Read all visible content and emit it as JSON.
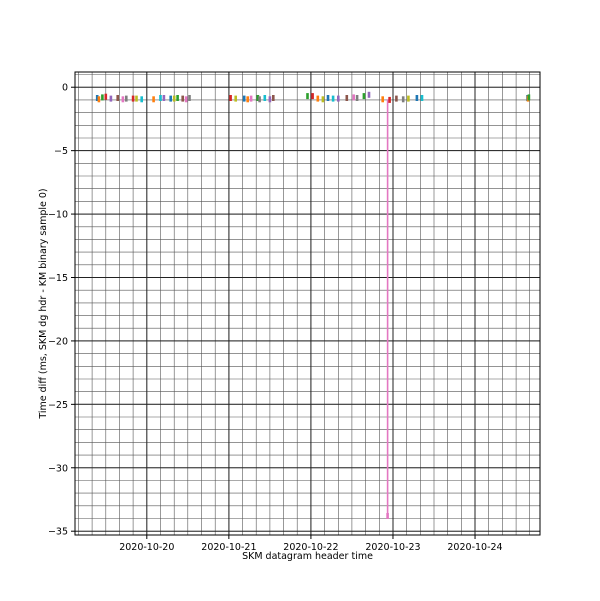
{
  "chart_data": {
    "type": "scatter",
    "title": "",
    "xlabel": "SKM datagram header time",
    "ylabel": "Time diff (ms, SKM dg hdr - KM binary sample 0)",
    "x_axis_kind": "date",
    "xlim": [
      "2020-10-19 03:00",
      "2020-10-24 19:00"
    ],
    "ylim": [
      -35.3,
      1.2
    ],
    "x_ticks": [
      "2020-10-20",
      "2020-10-21",
      "2020-10-22",
      "2020-10-23",
      "2020-10-24"
    ],
    "y_ticks": [
      0,
      -5,
      -10,
      -15,
      -20,
      -25,
      -30,
      -35
    ],
    "grid": true,
    "grid_minor": true,
    "series": [
      {
        "color": "#1f77b4",
        "points": [
          [
            "2020-10-19 09:30",
            -0.85
          ],
          [
            "2020-10-20 07:00",
            -0.9
          ],
          [
            "2020-10-21 04:30",
            -0.9
          ],
          [
            "2020-10-22 05:00",
            -0.85
          ],
          [
            "2020-10-23 07:00",
            -0.85
          ],
          [
            "2020-10-24 15:20",
            -0.85
          ]
        ]
      },
      {
        "color": "#ff7f0e",
        "points": [
          [
            "2020-10-19 10:00",
            -0.95
          ],
          [
            "2020-10-20 02:00",
            -0.95
          ],
          [
            "2020-10-21 05:30",
            -0.95
          ],
          [
            "2020-10-22 02:00",
            -0.9
          ],
          [
            "2020-10-22 21:00",
            -0.95
          ],
          [
            "2020-10-24 15:30",
            -0.9
          ]
        ]
      },
      {
        "color": "#2ca02c",
        "points": [
          [
            "2020-10-19 11:00",
            -0.8
          ],
          [
            "2020-10-20 09:00",
            -0.85
          ],
          [
            "2020-10-21 08:30",
            -0.85
          ],
          [
            "2020-10-21 23:00",
            -0.7
          ],
          [
            "2020-10-22 15:30",
            -0.7
          ],
          [
            "2020-10-24 15:45",
            -0.8
          ]
        ]
      },
      {
        "color": "#d62728",
        "points": [
          [
            "2020-10-19 12:00",
            -0.75
          ],
          [
            "2020-10-19 20:00",
            -0.9
          ],
          [
            "2020-10-21 00:30",
            -0.85
          ],
          [
            "2020-10-22 00:30",
            -0.7
          ],
          [
            "2020-10-22 23:00",
            -1.0
          ]
        ]
      },
      {
        "color": "#9467bd",
        "points": [
          [
            "2020-10-19 13:30",
            -0.9
          ],
          [
            "2020-10-20 05:00",
            -0.85
          ],
          [
            "2020-10-21 12:00",
            -0.95
          ],
          [
            "2020-10-22 08:00",
            -0.9
          ],
          [
            "2020-10-22 17:00",
            -0.6
          ]
        ]
      },
      {
        "color": "#8c564b",
        "points": [
          [
            "2020-10-19 15:30",
            -0.85
          ],
          [
            "2020-10-20 10:30",
            -0.9
          ],
          [
            "2020-10-21 13:00",
            -0.85
          ],
          [
            "2020-10-22 10:30",
            -0.85
          ],
          [
            "2020-10-23 01:00",
            -0.9
          ]
        ]
      },
      {
        "color": "#e377c2",
        "points": [
          [
            "2020-10-19 17:00",
            -0.95
          ],
          [
            "2020-10-20 11:30",
            -0.95
          ],
          [
            "2020-10-21 06:30",
            -0.9
          ],
          [
            "2020-10-22 12:30",
            -0.8
          ],
          [
            "2020-10-22 22:25",
            -33.8
          ]
        ]
      },
      {
        "color": "#7f7f7f",
        "points": [
          [
            "2020-10-19 18:00",
            -0.9
          ],
          [
            "2020-10-20 12:30",
            -0.85
          ],
          [
            "2020-10-21 09:00",
            -0.95
          ],
          [
            "2020-10-22 13:30",
            -0.85
          ],
          [
            "2020-10-23 03:00",
            -0.95
          ]
        ]
      },
      {
        "color": "#bcbd22",
        "points": [
          [
            "2020-10-19 21:00",
            -0.9
          ],
          [
            "2020-10-20 08:00",
            -0.9
          ],
          [
            "2020-10-21 02:00",
            -0.9
          ],
          [
            "2020-10-22 03:30",
            -0.95
          ],
          [
            "2020-10-23 04:30",
            -0.9
          ]
        ]
      },
      {
        "color": "#17becf",
        "points": [
          [
            "2020-10-19 22:30",
            -0.95
          ],
          [
            "2020-10-20 04:00",
            -0.85
          ],
          [
            "2020-10-21 10:30",
            -0.85
          ],
          [
            "2020-10-22 06:30",
            -0.9
          ],
          [
            "2020-10-23 08:30",
            -0.85
          ]
        ]
      }
    ],
    "spike": {
      "color": "#e377c2",
      "x": "2020-10-22 22:25",
      "y_top": -0.95,
      "y_bottom": -33.8
    }
  }
}
